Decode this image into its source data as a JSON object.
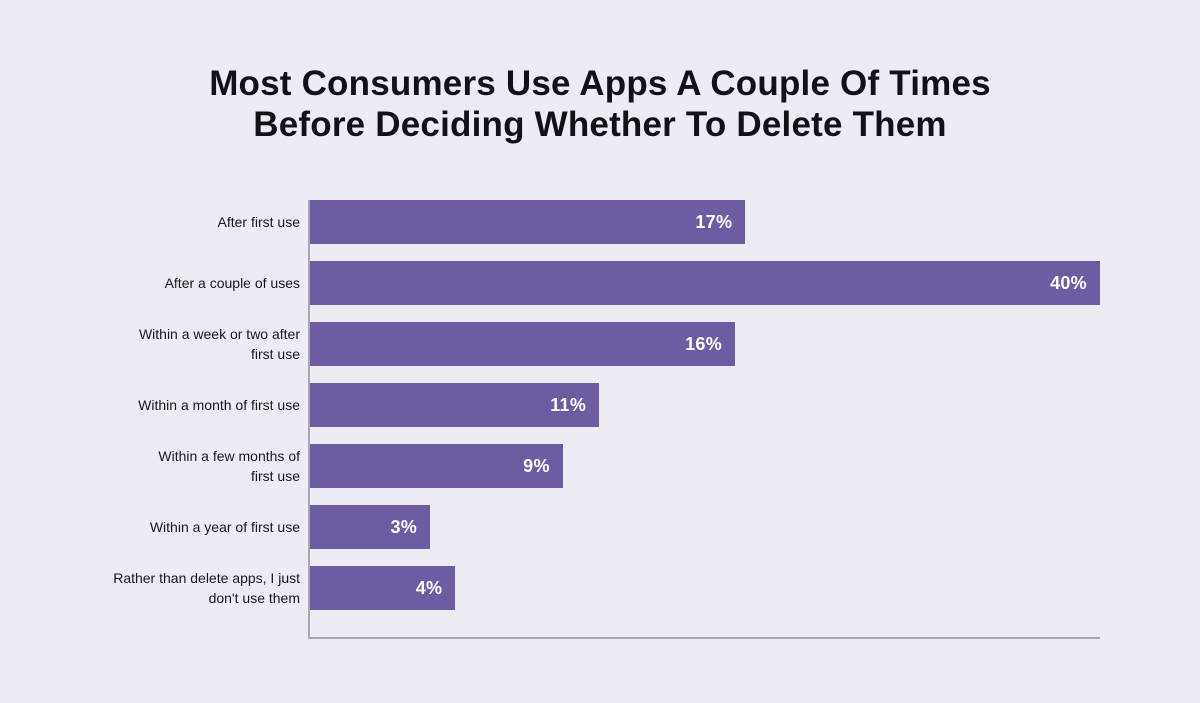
{
  "page": {
    "background": "#EDECF4"
  },
  "title": {
    "line1": "Most Consumers Use Apps A Couple Of Times",
    "line2": "Before Deciding Whether To Delete Them",
    "color": "#131118"
  },
  "chart_data": {
    "type": "bar",
    "orientation": "horizontal",
    "title": "Most Consumers Use Apps A Couple Of Times Before Deciding Whether To Delete Them",
    "categories": [
      "After first use",
      "After a couple of uses",
      "Within a week or two after first use",
      "Within a month of first use",
      "Within a few months of first use",
      "Within a year of first use",
      "Rather than delete apps, I just don't use them"
    ],
    "values": [
      17,
      40,
      16,
      11,
      9,
      3,
      4
    ],
    "value_labels": [
      "17%",
      "40%",
      "16%",
      "11%",
      "9%",
      "3%",
      "4%"
    ],
    "label_lines": [
      [
        "After first use"
      ],
      [
        "After a couple of uses"
      ],
      [
        "Within a week or two after",
        "first use"
      ],
      [
        "Within a month of first use"
      ],
      [
        "Within a few months of",
        "first use"
      ],
      [
        "Within a year of first use"
      ],
      [
        "Rather than delete apps, I just",
        "don't use them"
      ]
    ],
    "xlabel": "",
    "ylabel": "",
    "legend": false,
    "grid": false,
    "bar_color": "#6E5CA3",
    "value_label_color": "#FFFFFF",
    "category_label_color": "#19181D",
    "axis_color": "#A9A8B0",
    "render": {
      "bar_width_pct": [
        55.1,
        100,
        53.8,
        36.6,
        32.0,
        15.2,
        18.4
      ]
    }
  }
}
